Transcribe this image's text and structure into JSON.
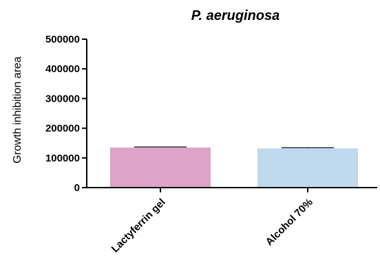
{
  "chart_data": {
    "type": "bar",
    "title": "P. aeruginosa",
    "xlabel": "",
    "ylabel": "Growth inhibition area",
    "categories": [
      "Lactyferrin gel",
      "Alcohol 70%"
    ],
    "values": [
      135000,
      132000
    ],
    "errors": [
      2000,
      2500
    ],
    "colors": [
      "#dea3c8",
      "#bfd9ef"
    ],
    "ylim": [
      0,
      500000
    ],
    "yticks": [
      "0",
      "100000",
      "200000",
      "300000",
      "400000",
      "500000"
    ],
    "grid": false,
    "legend": "none"
  }
}
